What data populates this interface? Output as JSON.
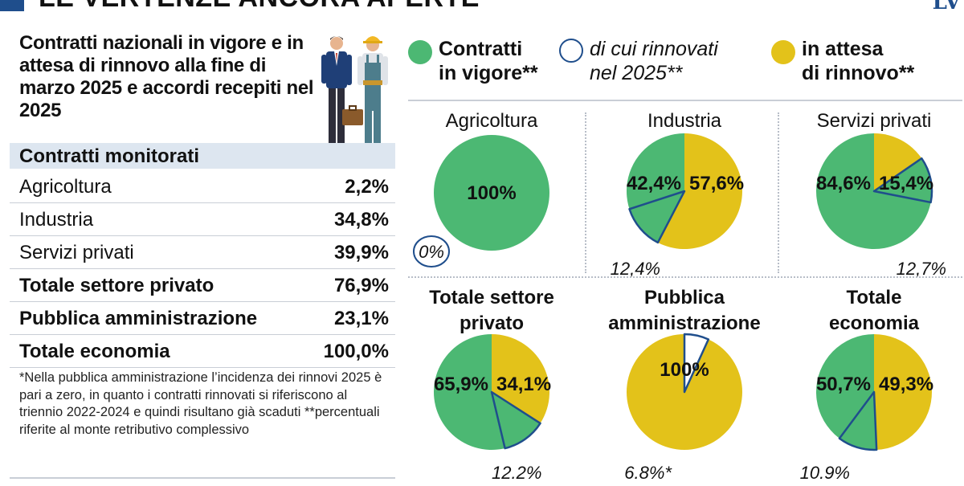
{
  "header": {
    "title": "LE VERTENZE ANCORA APERTE",
    "logo": "LV"
  },
  "subtitle": "Contratti nazionali in vigore e in attesa di rinnovo alla fine di marzo 2025 e accordi recepiti nel 2025",
  "table": {
    "header": "Contratti monitorati",
    "rows": [
      {
        "label": "Agricoltura",
        "value": "2,2%",
        "bold": false
      },
      {
        "label": "Industria",
        "value": "34,8%",
        "bold": false
      },
      {
        "label": "Servizi privati",
        "value": "39,9%",
        "bold": false
      },
      {
        "label": "Totale settore privato",
        "value": "76,9%",
        "bold": true
      },
      {
        "label": "Pubblica amministrazione",
        "value": "23,1%",
        "bold": true
      },
      {
        "label": "Totale economia",
        "value": "100,0%",
        "bold": true
      }
    ]
  },
  "footnote": "*Nella pubblica amministrazione l’incidenza dei rinnovi 2025 è pari a zero, in quanto i contratti rinnovati si riferiscono al triennio 2022-2024 e quindi risultano già scaduti **percentuali riferite al monte retributivo complessivo",
  "legend": [
    {
      "text_1": "Contratti",
      "text_2": "in vigore**",
      "style": "bold",
      "color": "#4cb873"
    },
    {
      "text_1": "di cui rinnovati",
      "text_2": "nel 2025**",
      "style": "italic",
      "color": "#ffffff"
    },
    {
      "text_1": "in attesa",
      "text_2": "di rinnovo**",
      "style": "bold",
      "color": "#e3c21a"
    }
  ],
  "colors": {
    "green": "#4cb873",
    "yellow": "#e3c21a",
    "navy": "#1f4e8c",
    "header_bg": "#dde6f0"
  },
  "chart_data": [
    {
      "type": "pie",
      "title": "Agricoltura",
      "title_bold": false,
      "in_vigore": 100,
      "in_attesa": 0,
      "rinnovati": 0,
      "label_vigore": "100%",
      "label_attesa": "",
      "label_rinnovati": "0%"
    },
    {
      "type": "pie",
      "title": "Industria",
      "title_bold": false,
      "in_vigore": 42.4,
      "in_attesa": 57.6,
      "rinnovati": 12.4,
      "label_vigore": "42,4%",
      "label_attesa": "57,6%",
      "label_rinnovati": "12,4%"
    },
    {
      "type": "pie",
      "title": "Servizi privati",
      "title_bold": false,
      "in_vigore": 84.6,
      "in_attesa": 15.4,
      "rinnovati": 12.7,
      "label_vigore": "84,6%",
      "label_attesa": "15,4%",
      "label_rinnovati": "12,7%"
    },
    {
      "type": "pie",
      "title": "Totale settore privato",
      "title_line_1": "Totale settore",
      "title_line_2": "privato",
      "title_bold": true,
      "in_vigore": 65.9,
      "in_attesa": 34.1,
      "rinnovati": 12.2,
      "label_vigore": "65,9%",
      "label_attesa": "34,1%",
      "label_rinnovati": "12.2%"
    },
    {
      "type": "pie",
      "title": "Pubblica amministrazione",
      "title_line_1": "Pubblica",
      "title_line_2": "amministrazione",
      "title_bold": true,
      "in_vigore": 0,
      "in_attesa": 100,
      "rinnovati": 6.8,
      "label_vigore": "",
      "label_attesa": "100%",
      "label_rinnovati": "6.8%*"
    },
    {
      "type": "pie",
      "title": "Totale economia",
      "title_line_1": "Totale",
      "title_line_2": "economia",
      "title_bold": true,
      "in_vigore": 50.7,
      "in_attesa": 49.3,
      "rinnovati": 10.9,
      "label_vigore": "50,7%",
      "label_attesa": "49,3%",
      "label_rinnovati": "10.9%"
    }
  ]
}
